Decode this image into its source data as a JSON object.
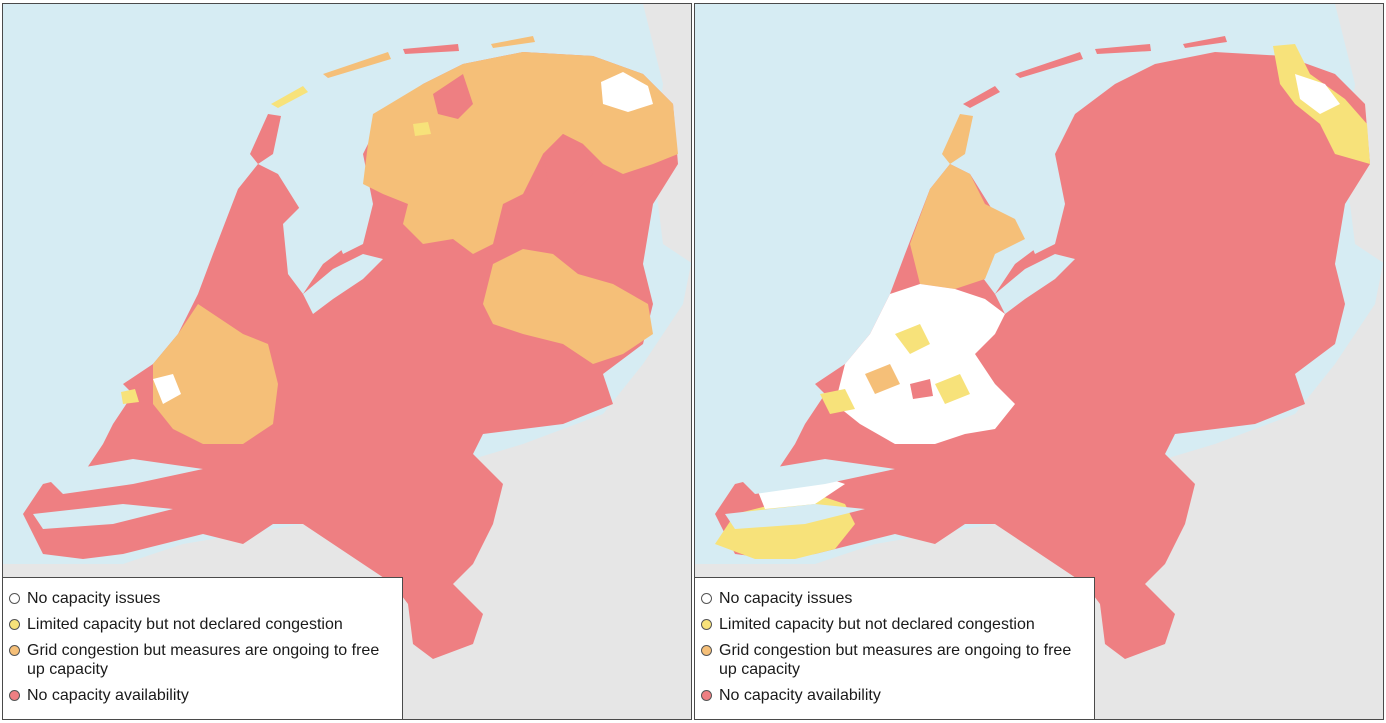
{
  "colors": {
    "sea": "#d6ecf3",
    "land_outside": "#e6e6e6",
    "none": "#ffffff",
    "limited": "#f7e27a",
    "grid": "#f5bf78",
    "unavailable": "#ee7f82",
    "water": "#9fb3bd"
  },
  "legend": [
    {
      "key": "none",
      "label": "No capacity issues"
    },
    {
      "key": "limited",
      "label": "Limited capacity but not declared congestion"
    },
    {
      "key": "grid",
      "label": "Grid congestion but measures are ongoing to free up capacity"
    },
    {
      "key": "unavailable",
      "label": "No capacity availability"
    }
  ],
  "maps": [
    {
      "id": "left",
      "legend": [
        "No capacity issues",
        "Limited capacity but not declared congestion",
        "Grid congestion but measures are ongoing to free up capacity",
        "No capacity availability"
      ]
    },
    {
      "id": "right",
      "legend": [
        "No capacity issues",
        "Limited capacity but not declared congestion",
        "Grid congestion but measures are ongoing to free up capacity",
        "No capacity availability"
      ]
    }
  ]
}
